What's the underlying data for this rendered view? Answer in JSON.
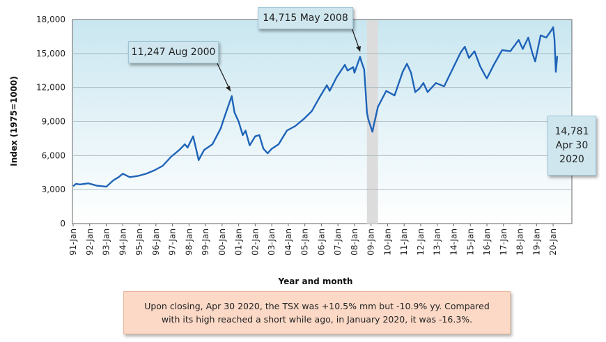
{
  "chart_data": {
    "type": "line",
    "ylabel": "Index (1975=1000)",
    "xlabel": "Year and month",
    "ylim": [
      0,
      18000
    ],
    "yticks": [
      "0",
      "3,000",
      "6,000",
      "9,000",
      "12,000",
      "15,000",
      "18,000"
    ],
    "ytick_values": [
      0,
      3000,
      6000,
      9000,
      12000,
      15000,
      18000
    ],
    "xticks": [
      "91-Jan",
      "92-Jan",
      "93-Jan",
      "94-Jan",
      "95-Jan",
      "96-Jan",
      "97-Jan",
      "98-Jan",
      "99-Jan",
      "00-Jan",
      "01-Jan",
      "02-Jan",
      "03-Jan",
      "04-Jan",
      "05-Jan",
      "06-Jan",
      "07-Jan",
      "08-Jan",
      "09-Jan",
      "10-Jan",
      "11-Jan",
      "12-Jan",
      "13-Jan",
      "14-Jan",
      "15-Jan",
      "16-Jan",
      "17-Jan",
      "18-Jan",
      "19-Jan",
      "20-Jan"
    ],
    "x_start": "1991-01",
    "x_end": "2020-04",
    "grid": true,
    "line_color": "#1e63b8",
    "recession_shading": {
      "from": "2008-10",
      "to": "2009-06"
    },
    "series": [
      {
        "points": [
          [
            "1991-01",
            3300
          ],
          [
            "1991-03",
            3500
          ],
          [
            "1991-06",
            3450
          ],
          [
            "1991-09",
            3500
          ],
          [
            "1991-12",
            3550
          ],
          [
            "1992-03",
            3450
          ],
          [
            "1992-06",
            3350
          ],
          [
            "1992-10",
            3300
          ],
          [
            "1993-01",
            3250
          ],
          [
            "1993-06",
            3800
          ],
          [
            "1993-10",
            4100
          ],
          [
            "1994-01",
            4400
          ],
          [
            "1994-06",
            4100
          ],
          [
            "1994-12",
            4200
          ],
          [
            "1995-06",
            4400
          ],
          [
            "1995-12",
            4700
          ],
          [
            "1996-06",
            5100
          ],
          [
            "1996-12",
            5900
          ],
          [
            "1997-06",
            6500
          ],
          [
            "1997-10",
            7000
          ],
          [
            "1997-12",
            6700
          ],
          [
            "1998-04",
            7700
          ],
          [
            "1998-08",
            5600
          ],
          [
            "1998-12",
            6500
          ],
          [
            "1999-06",
            7000
          ],
          [
            "1999-12",
            8400
          ],
          [
            "2000-03",
            9500
          ],
          [
            "2000-08",
            11247
          ],
          [
            "2000-10",
            9800
          ],
          [
            "2001-01",
            9000
          ],
          [
            "2001-04",
            7800
          ],
          [
            "2001-06",
            8200
          ],
          [
            "2001-09",
            6900
          ],
          [
            "2002-01",
            7700
          ],
          [
            "2002-04",
            7800
          ],
          [
            "2002-07",
            6600
          ],
          [
            "2002-10",
            6200
          ],
          [
            "2003-01",
            6600
          ],
          [
            "2003-06",
            7000
          ],
          [
            "2003-12",
            8200
          ],
          [
            "2004-06",
            8600
          ],
          [
            "2004-12",
            9200
          ],
          [
            "2005-06",
            9900
          ],
          [
            "2005-12",
            11200
          ],
          [
            "2006-05",
            12200
          ],
          [
            "2006-07",
            11700
          ],
          [
            "2006-12",
            12900
          ],
          [
            "2007-06",
            14000
          ],
          [
            "2007-08",
            13500
          ],
          [
            "2007-12",
            13800
          ],
          [
            "2008-01",
            13300
          ],
          [
            "2008-05",
            14715
          ],
          [
            "2008-06",
            14300
          ],
          [
            "2008-08",
            13600
          ],
          [
            "2008-09",
            11800
          ],
          [
            "2008-10",
            9800
          ],
          [
            "2008-11",
            9200
          ],
          [
            "2009-02",
            8100
          ],
          [
            "2009-03",
            8700
          ],
          [
            "2009-06",
            10300
          ],
          [
            "2009-12",
            11700
          ],
          [
            "2010-06",
            11300
          ],
          [
            "2010-12",
            13400
          ],
          [
            "2011-03",
            14100
          ],
          [
            "2011-06",
            13300
          ],
          [
            "2011-09",
            11600
          ],
          [
            "2011-12",
            11900
          ],
          [
            "2012-03",
            12400
          ],
          [
            "2012-06",
            11600
          ],
          [
            "2012-12",
            12400
          ],
          [
            "2013-06",
            12100
          ],
          [
            "2013-12",
            13600
          ],
          [
            "2014-06",
            15100
          ],
          [
            "2014-09",
            15600
          ],
          [
            "2014-12",
            14600
          ],
          [
            "2015-04",
            15200
          ],
          [
            "2015-08",
            13900
          ],
          [
            "2015-12",
            13000
          ],
          [
            "2016-01",
            12800
          ],
          [
            "2016-06",
            14000
          ],
          [
            "2016-12",
            15300
          ],
          [
            "2017-06",
            15200
          ],
          [
            "2017-12",
            16200
          ],
          [
            "2018-03",
            15400
          ],
          [
            "2018-07",
            16400
          ],
          [
            "2018-10",
            15000
          ],
          [
            "2018-12",
            14300
          ],
          [
            "2019-04",
            16600
          ],
          [
            "2019-08",
            16400
          ],
          [
            "2019-12",
            17100
          ],
          [
            "2020-01",
            17318
          ],
          [
            "2020-02",
            16300
          ],
          [
            "2020-03",
            13379
          ],
          [
            "2020-04",
            14781
          ]
        ]
      }
    ]
  },
  "callouts": {
    "peak_2000": "11,247 Aug 2000",
    "peak_2008": "14,715 May 2008",
    "latest": "14,781\nApr 30\n2020"
  },
  "note": "Upon closing, Apr 30 2020, the TSX was +10.5% mm but -10.9% yy. Compared with its high reached a short while ago, in January 2020, it was -16.3%."
}
